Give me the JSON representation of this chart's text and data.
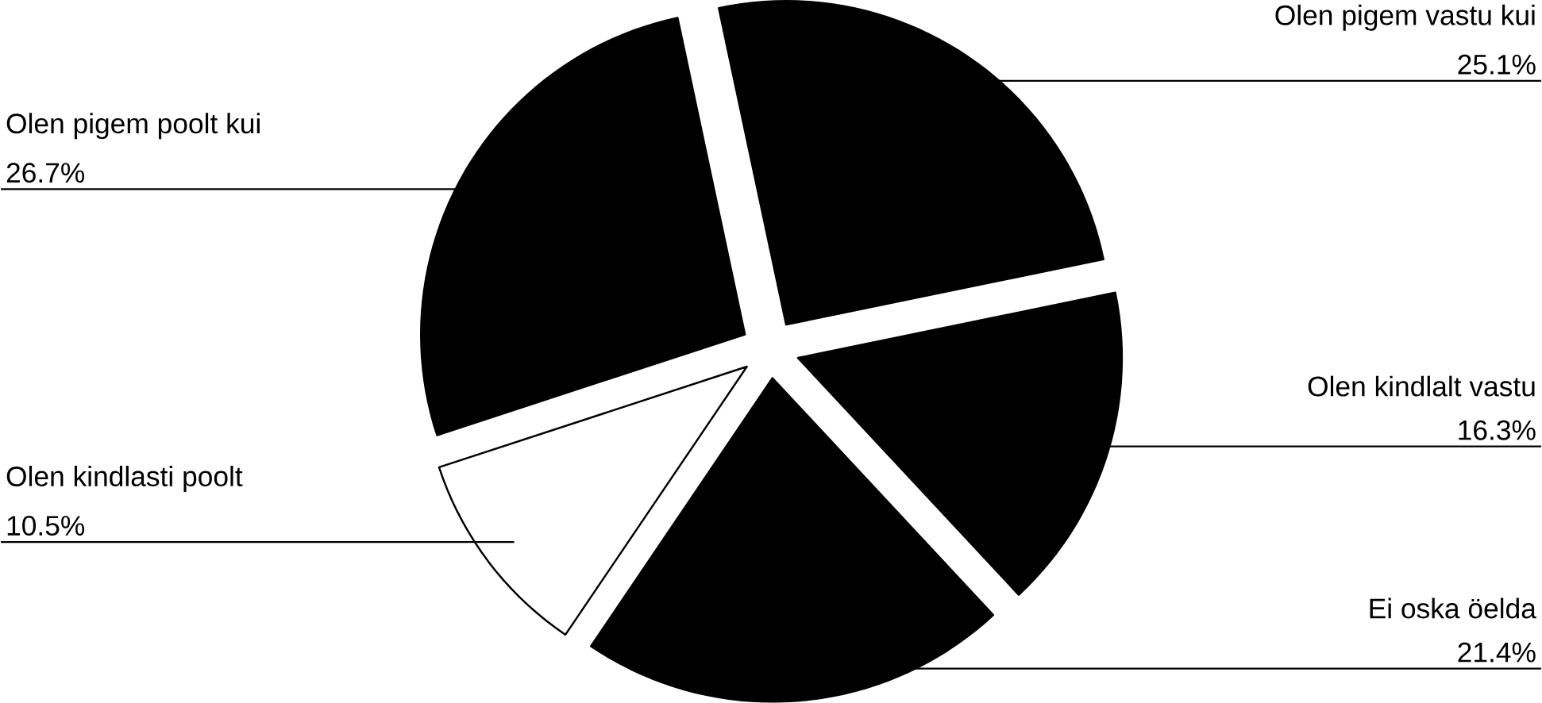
{
  "chart_data": {
    "type": "pie",
    "categories": [
      "Olen pigem vastu kui",
      "Olen kindlalt vastu",
      "Ei oska öelda",
      "Olen kindlasti poolt",
      "Olen pigem poolt kui"
    ],
    "values": [
      25.1,
      16.3,
      21.4,
      10.5,
      26.7
    ],
    "value_labels": [
      "25.1%",
      "16.3%",
      "21.4%",
      "10.5%",
      "26.7%"
    ],
    "colors": [
      "#000000",
      "#000000",
      "#000000",
      "#ffffff",
      "#000000"
    ]
  }
}
